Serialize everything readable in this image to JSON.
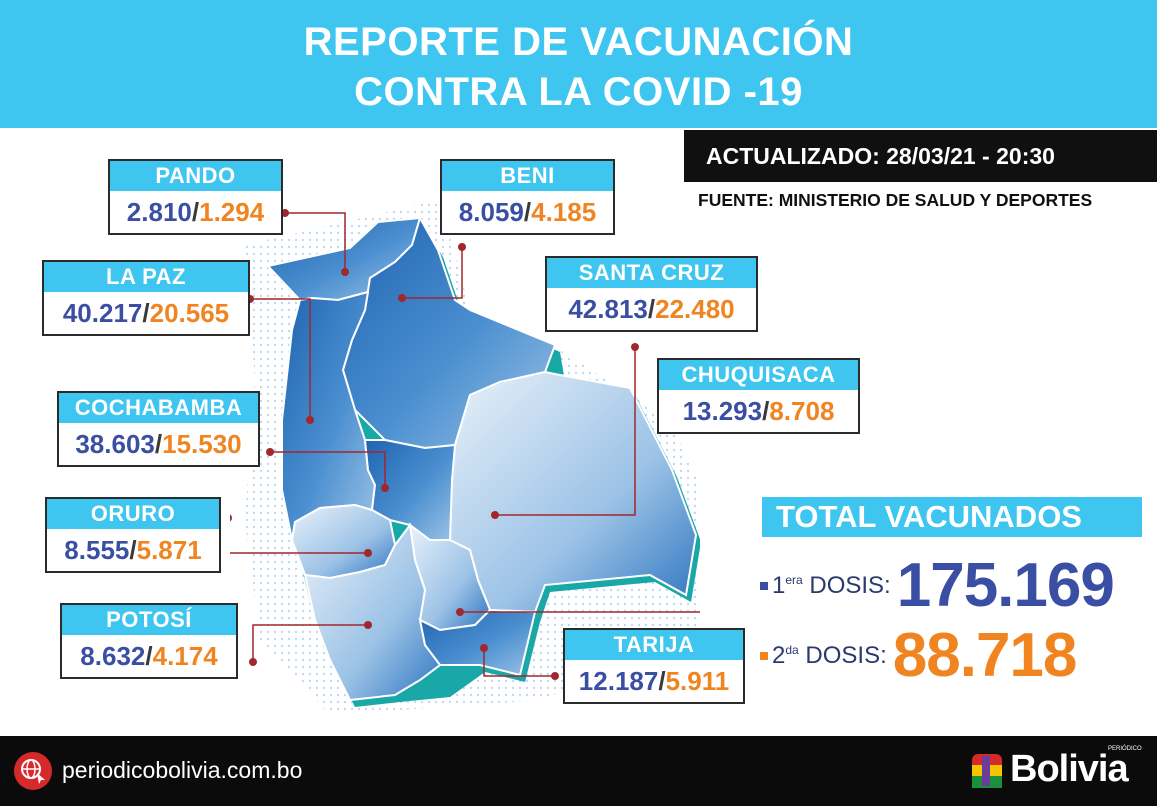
{
  "header": {
    "title_line1": "REPORTE DE VACUNACIÓN",
    "title_line2": "CONTRA LA COVID -19"
  },
  "updated": "ACTUALIZADO: 28/03/21 - 20:30",
  "source": "FUENTE: MINISTERIO DE SALUD Y DEPORTES",
  "departments": {
    "pando": {
      "name": "PANDO",
      "first": "2.810",
      "second": "1.294"
    },
    "beni": {
      "name": "BENI",
      "first": "8.059",
      "second": "4.185"
    },
    "la_paz": {
      "name": "LA PAZ",
      "first": "40.217",
      "second": "20.565"
    },
    "santa_cruz": {
      "name": "SANTA CRUZ",
      "first": "42.813",
      "second": "22.480"
    },
    "chuquisaca": {
      "name": "CHUQUISACA",
      "first": "13.293",
      "second": "8.708"
    },
    "cochabamba": {
      "name": "COCHABAMBA",
      "first": "38.603",
      "second": "15.530"
    },
    "oruro": {
      "name": "ORURO",
      "first": "8.555",
      "second": "5.871"
    },
    "potosi": {
      "name": "POTOSÍ",
      "first": "8.632",
      "second": "4.174"
    },
    "tarija": {
      "name": "TARIJA",
      "first": "12.187",
      "second": "5.911"
    }
  },
  "separator": "/",
  "totals": {
    "label": "TOTAL VACUNADOS",
    "dose1_prefix": "1",
    "dose1_sup": "era",
    "dose1_suffix": " DOSIS:",
    "dose1_value": "175.169",
    "dose2_prefix": "2",
    "dose2_sup": "da",
    "dose2_suffix": " DOSIS:",
    "dose2_value": "88.718"
  },
  "footer": {
    "website": "periodicobolivia.com.bo",
    "brand": "Bolivia",
    "brand_small": "PERIÓDICO"
  },
  "colors": {
    "accent": "#3ec6f1",
    "first_dose": "#3a4fa3",
    "second_dose": "#f08421",
    "connector": "#a1272f",
    "map_fill": "#2f7cc4",
    "map_shadow": "#1aa7a8"
  },
  "icons": [
    "globe-icon",
    "bolivia-logo-icon"
  ]
}
